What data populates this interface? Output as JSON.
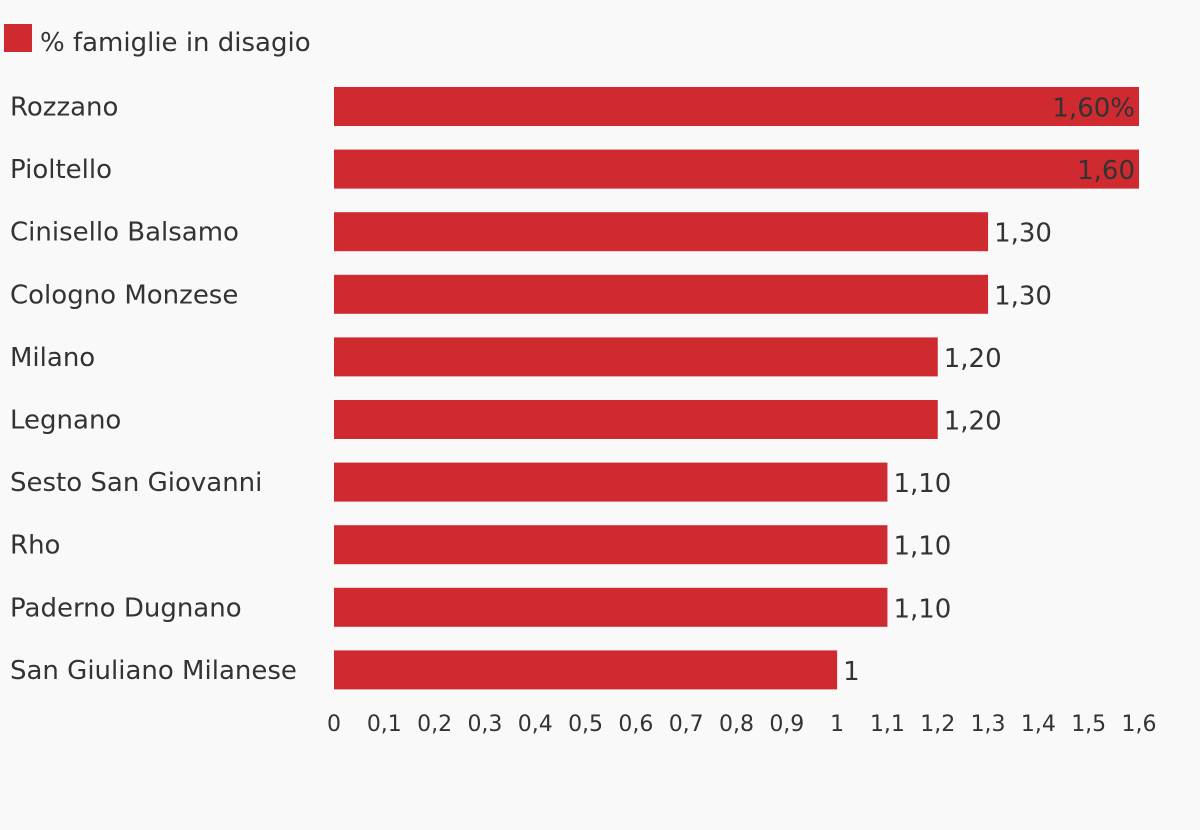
{
  "chart_data": {
    "type": "bar",
    "orientation": "horizontal",
    "legend": {
      "label": "% famiglie in disagio",
      "placement": "top-left"
    },
    "series": [
      {
        "name": "% famiglie in disagio",
        "color": "#cf2a30"
      }
    ],
    "categories": [
      "Rozzano",
      "Pioltello",
      "Cinisello Balsamo",
      "Cologno Monzese",
      "Milano",
      "Legnano",
      "Sesto San Giovanni",
      "Rho",
      "Paderno Dugnano",
      "San Giuliano Milanese"
    ],
    "values": [
      1.6,
      1.6,
      1.3,
      1.3,
      1.2,
      1.2,
      1.1,
      1.1,
      1.1,
      1.0
    ],
    "value_labels": [
      "1,60%",
      "1,60",
      "1,30",
      "1,30",
      "1,20",
      "1,20",
      "1,10",
      "1,10",
      "1,10",
      "1"
    ],
    "xlim": [
      0,
      1.6
    ],
    "x_ticks": [
      0,
      0.1,
      0.2,
      0.3,
      0.4,
      0.5,
      0.6,
      0.7,
      0.8,
      0.9,
      1,
      1.1,
      1.2,
      1.3,
      1.4,
      1.5,
      1.6
    ],
    "x_tick_labels": [
      "0",
      "0,1",
      "0,2",
      "0,3",
      "0,4",
      "0,5",
      "0,6",
      "0,7",
      "0,8",
      "0,9",
      "1",
      "1,1",
      "1,2",
      "1,3",
      "1,4",
      "1,5",
      "1,6"
    ],
    "grid": false,
    "colors": {
      "bar": "#cf2a30",
      "text": "#333333",
      "background": "#f9f9f9"
    }
  }
}
